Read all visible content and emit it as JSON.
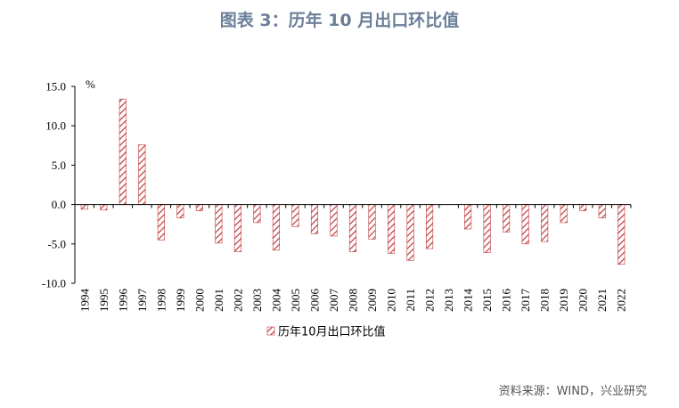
{
  "title": "图表 3：历年 10 月出口环比值",
  "source": "资料来源：WIND，兴业研究",
  "colors": {
    "bar": "#c0393b",
    "title": "#6b7f99"
  },
  "chart_data": {
    "type": "bar",
    "title": "图表 3：历年 10 月出口环比值",
    "unit": "%",
    "ylim": [
      -10,
      15
    ],
    "yticks": [
      "15.0",
      "10.0",
      "5.0",
      "0.0",
      "-5.0",
      "-10.0"
    ],
    "ytick_values": [
      15,
      10,
      5,
      0,
      -5,
      -10
    ],
    "grid": false,
    "legend_position": "bottom",
    "categories": [
      "1994",
      "1995",
      "1996",
      "1997",
      "1998",
      "1999",
      "2000",
      "2001",
      "2002",
      "2003",
      "2004",
      "2005",
      "2006",
      "2007",
      "2008",
      "2009",
      "2010",
      "2011",
      "2012",
      "2013",
      "2014",
      "2015",
      "2016",
      "2017",
      "2018",
      "2019",
      "2020",
      "2021",
      "2022"
    ],
    "series": [
      {
        "name": "历年10月出口环比值",
        "values": [
          -0.6,
          -0.7,
          13.4,
          7.6,
          -4.5,
          -1.7,
          -0.8,
          -4.9,
          -6.0,
          -2.3,
          -5.8,
          -2.8,
          -3.7,
          -4.0,
          -6.0,
          -4.4,
          -6.2,
          -7.1,
          -5.6,
          0.0,
          -3.1,
          -6.1,
          -3.5,
          -5.0,
          -4.7,
          -2.3,
          -0.8,
          -1.7,
          -7.6
        ]
      }
    ]
  }
}
